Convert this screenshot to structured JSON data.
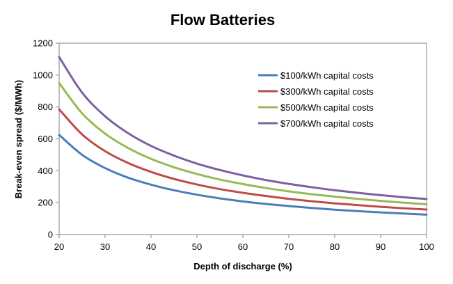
{
  "chart_data": {
    "type": "line",
    "title": "Flow Batteries",
    "xlabel": "Depth of discharge (%)",
    "ylabel": "Break-even spread ($/MWh)",
    "xlim": [
      20,
      100
    ],
    "ylim": [
      0,
      1200
    ],
    "xticks": [
      20,
      30,
      40,
      50,
      60,
      70,
      80,
      90,
      100
    ],
    "yticks": [
      0,
      200,
      400,
      600,
      800,
      1000,
      1200
    ],
    "x": [
      20,
      25,
      30,
      35,
      40,
      45,
      50,
      55,
      60,
      65,
      70,
      75,
      80,
      85,
      90,
      95,
      100
    ],
    "series": [
      {
        "name": "$100/kWh capital costs",
        "color": "#4a7ebb",
        "values": [
          625,
          500,
          417,
          357,
          313,
          278,
          250,
          227,
          208,
          192,
          179,
          167,
          156,
          147,
          139,
          132,
          125
        ]
      },
      {
        "name": "$300/kWh capital costs",
        "color": "#be4b48",
        "values": [
          785,
          628,
          523,
          449,
          393,
          349,
          314,
          285,
          262,
          242,
          224,
          209,
          196,
          185,
          174,
          165,
          157
        ]
      },
      {
        "name": "$500/kWh capital costs",
        "color": "#98b954",
        "values": [
          950,
          760,
          633,
          543,
          475,
          422,
          380,
          345,
          317,
          292,
          271,
          253,
          238,
          224,
          211,
          200,
          190
        ]
      },
      {
        "name": "$700/kWh capital costs",
        "color": "#7d60a0",
        "values": [
          1113,
          890,
          742,
          636,
          556,
          495,
          445,
          405,
          371,
          342,
          318,
          297,
          278,
          262,
          247,
          234,
          223
        ]
      }
    ],
    "grid": false,
    "legend_position": "top-right inside plot"
  }
}
